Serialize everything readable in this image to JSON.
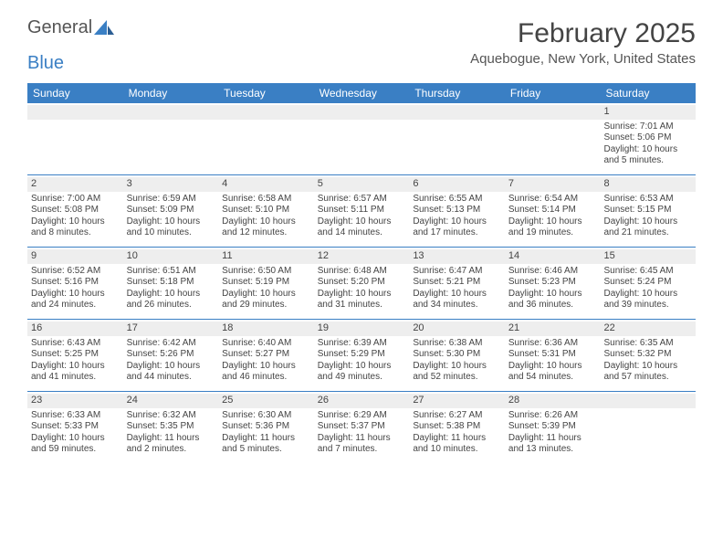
{
  "brand": {
    "word1": "General",
    "word2": "Blue"
  },
  "title": "February 2025",
  "subtitle": "Aquebogue, New York, United States",
  "colors": {
    "header_bg": "#3a7fc4",
    "header_fg": "#ffffff",
    "daynum_bg": "#eeeeee",
    "text": "#444444",
    "row_border": "#3a7fc4",
    "page_bg": "#ffffff"
  },
  "fonts": {
    "family": "Arial",
    "title_size_pt": 22,
    "subtitle_size_pt": 11,
    "weekday_size_pt": 9,
    "cell_size_pt": 7.5,
    "daynum_size_pt": 8
  },
  "weekdays": [
    "Sunday",
    "Monday",
    "Tuesday",
    "Wednesday",
    "Thursday",
    "Friday",
    "Saturday"
  ],
  "weeks": [
    [
      {
        "n": "",
        "sr": "",
        "ss": "",
        "dl1": "",
        "dl2": ""
      },
      {
        "n": "",
        "sr": "",
        "ss": "",
        "dl1": "",
        "dl2": ""
      },
      {
        "n": "",
        "sr": "",
        "ss": "",
        "dl1": "",
        "dl2": ""
      },
      {
        "n": "",
        "sr": "",
        "ss": "",
        "dl1": "",
        "dl2": ""
      },
      {
        "n": "",
        "sr": "",
        "ss": "",
        "dl1": "",
        "dl2": ""
      },
      {
        "n": "",
        "sr": "",
        "ss": "",
        "dl1": "",
        "dl2": ""
      },
      {
        "n": "1",
        "sr": "Sunrise: 7:01 AM",
        "ss": "Sunset: 5:06 PM",
        "dl1": "Daylight: 10 hours",
        "dl2": "and 5 minutes."
      }
    ],
    [
      {
        "n": "2",
        "sr": "Sunrise: 7:00 AM",
        "ss": "Sunset: 5:08 PM",
        "dl1": "Daylight: 10 hours",
        "dl2": "and 8 minutes."
      },
      {
        "n": "3",
        "sr": "Sunrise: 6:59 AM",
        "ss": "Sunset: 5:09 PM",
        "dl1": "Daylight: 10 hours",
        "dl2": "and 10 minutes."
      },
      {
        "n": "4",
        "sr": "Sunrise: 6:58 AM",
        "ss": "Sunset: 5:10 PM",
        "dl1": "Daylight: 10 hours",
        "dl2": "and 12 minutes."
      },
      {
        "n": "5",
        "sr": "Sunrise: 6:57 AM",
        "ss": "Sunset: 5:11 PM",
        "dl1": "Daylight: 10 hours",
        "dl2": "and 14 minutes."
      },
      {
        "n": "6",
        "sr": "Sunrise: 6:55 AM",
        "ss": "Sunset: 5:13 PM",
        "dl1": "Daylight: 10 hours",
        "dl2": "and 17 minutes."
      },
      {
        "n": "7",
        "sr": "Sunrise: 6:54 AM",
        "ss": "Sunset: 5:14 PM",
        "dl1": "Daylight: 10 hours",
        "dl2": "and 19 minutes."
      },
      {
        "n": "8",
        "sr": "Sunrise: 6:53 AM",
        "ss": "Sunset: 5:15 PM",
        "dl1": "Daylight: 10 hours",
        "dl2": "and 21 minutes."
      }
    ],
    [
      {
        "n": "9",
        "sr": "Sunrise: 6:52 AM",
        "ss": "Sunset: 5:16 PM",
        "dl1": "Daylight: 10 hours",
        "dl2": "and 24 minutes."
      },
      {
        "n": "10",
        "sr": "Sunrise: 6:51 AM",
        "ss": "Sunset: 5:18 PM",
        "dl1": "Daylight: 10 hours",
        "dl2": "and 26 minutes."
      },
      {
        "n": "11",
        "sr": "Sunrise: 6:50 AM",
        "ss": "Sunset: 5:19 PM",
        "dl1": "Daylight: 10 hours",
        "dl2": "and 29 minutes."
      },
      {
        "n": "12",
        "sr": "Sunrise: 6:48 AM",
        "ss": "Sunset: 5:20 PM",
        "dl1": "Daylight: 10 hours",
        "dl2": "and 31 minutes."
      },
      {
        "n": "13",
        "sr": "Sunrise: 6:47 AM",
        "ss": "Sunset: 5:21 PM",
        "dl1": "Daylight: 10 hours",
        "dl2": "and 34 minutes."
      },
      {
        "n": "14",
        "sr": "Sunrise: 6:46 AM",
        "ss": "Sunset: 5:23 PM",
        "dl1": "Daylight: 10 hours",
        "dl2": "and 36 minutes."
      },
      {
        "n": "15",
        "sr": "Sunrise: 6:45 AM",
        "ss": "Sunset: 5:24 PM",
        "dl1": "Daylight: 10 hours",
        "dl2": "and 39 minutes."
      }
    ],
    [
      {
        "n": "16",
        "sr": "Sunrise: 6:43 AM",
        "ss": "Sunset: 5:25 PM",
        "dl1": "Daylight: 10 hours",
        "dl2": "and 41 minutes."
      },
      {
        "n": "17",
        "sr": "Sunrise: 6:42 AM",
        "ss": "Sunset: 5:26 PM",
        "dl1": "Daylight: 10 hours",
        "dl2": "and 44 minutes."
      },
      {
        "n": "18",
        "sr": "Sunrise: 6:40 AM",
        "ss": "Sunset: 5:27 PM",
        "dl1": "Daylight: 10 hours",
        "dl2": "and 46 minutes."
      },
      {
        "n": "19",
        "sr": "Sunrise: 6:39 AM",
        "ss": "Sunset: 5:29 PM",
        "dl1": "Daylight: 10 hours",
        "dl2": "and 49 minutes."
      },
      {
        "n": "20",
        "sr": "Sunrise: 6:38 AM",
        "ss": "Sunset: 5:30 PM",
        "dl1": "Daylight: 10 hours",
        "dl2": "and 52 minutes."
      },
      {
        "n": "21",
        "sr": "Sunrise: 6:36 AM",
        "ss": "Sunset: 5:31 PM",
        "dl1": "Daylight: 10 hours",
        "dl2": "and 54 minutes."
      },
      {
        "n": "22",
        "sr": "Sunrise: 6:35 AM",
        "ss": "Sunset: 5:32 PM",
        "dl1": "Daylight: 10 hours",
        "dl2": "and 57 minutes."
      }
    ],
    [
      {
        "n": "23",
        "sr": "Sunrise: 6:33 AM",
        "ss": "Sunset: 5:33 PM",
        "dl1": "Daylight: 10 hours",
        "dl2": "and 59 minutes."
      },
      {
        "n": "24",
        "sr": "Sunrise: 6:32 AM",
        "ss": "Sunset: 5:35 PM",
        "dl1": "Daylight: 11 hours",
        "dl2": "and 2 minutes."
      },
      {
        "n": "25",
        "sr": "Sunrise: 6:30 AM",
        "ss": "Sunset: 5:36 PM",
        "dl1": "Daylight: 11 hours",
        "dl2": "and 5 minutes."
      },
      {
        "n": "26",
        "sr": "Sunrise: 6:29 AM",
        "ss": "Sunset: 5:37 PM",
        "dl1": "Daylight: 11 hours",
        "dl2": "and 7 minutes."
      },
      {
        "n": "27",
        "sr": "Sunrise: 6:27 AM",
        "ss": "Sunset: 5:38 PM",
        "dl1": "Daylight: 11 hours",
        "dl2": "and 10 minutes."
      },
      {
        "n": "28",
        "sr": "Sunrise: 6:26 AM",
        "ss": "Sunset: 5:39 PM",
        "dl1": "Daylight: 11 hours",
        "dl2": "and 13 minutes."
      },
      {
        "n": "",
        "sr": "",
        "ss": "",
        "dl1": "",
        "dl2": ""
      }
    ]
  ]
}
